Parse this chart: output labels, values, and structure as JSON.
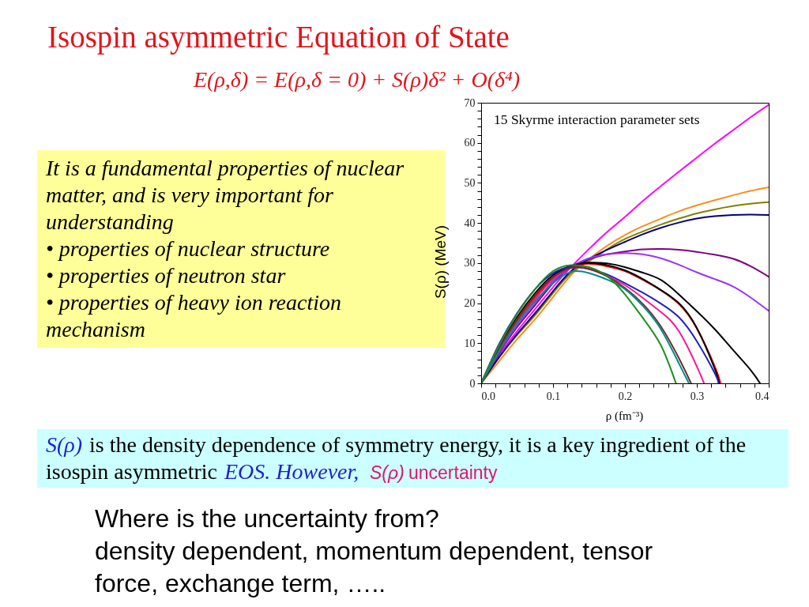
{
  "chart_data": {
    "type": "line",
    "title": "Isospin asymmetric Equation of State",
    "subtitle": "E(ρ,δ) = E(ρ,δ = 0) + S(ρ)δ² + O(δ⁴)",
    "xlabel": "ρ (fm⁻³)",
    "ylabel": "S(ρ) (MeV)",
    "annotations": [
      "15 Skyrme interaction parameter sets",
      "It is a fundamental properties of nuclear\nmatter, and is very important for\nunderstanding\n• properties of nuclear structure\n• properties of neutron star\n• properties of heavy ion reaction\nmechanism",
      "S(ρ)",
      "is the density dependence of symmetry energy, it is a key ingredient of the",
      "isospin asymmetric",
      "EOS. However,",
      "S(ρ)",
      "uncertainty",
      "Where is the uncertainty from?\ndensity dependent, momentum dependent, tensor\nforce, exchange term, ….."
    ],
    "xlim": [
      0,
      0.4
    ],
    "ylim": [
      0,
      70
    ],
    "xticks": [
      {
        "value": 0,
        "label": "0.0"
      },
      {
        "value": 0.02,
        "label": null
      },
      {
        "value": 0.04,
        "label": null
      },
      {
        "value": 0.06,
        "label": null
      },
      {
        "value": 0.08,
        "label": null
      },
      0.1,
      {
        "value": 0.12,
        "label": null
      },
      {
        "value": 0.14,
        "label": null
      },
      {
        "value": 0.16,
        "label": null
      },
      {
        "value": 0.18,
        "label": null
      },
      0.2,
      {
        "value": 0.22,
        "label": null
      },
      {
        "value": 0.24,
        "label": null
      },
      {
        "value": 0.26,
        "label": null
      },
      {
        "value": 0.28,
        "label": null
      },
      0.3,
      {
        "value": 0.32,
        "label": null
      },
      {
        "value": 0.34,
        "label": null
      },
      {
        "value": 0.36,
        "label": null
      },
      {
        "value": 0.38,
        "label": null
      },
      0.4
    ],
    "yticks": [
      0,
      {
        "value": 2,
        "label": null
      },
      {
        "value": 4,
        "label": null
      },
      {
        "value": 6,
        "label": null
      },
      {
        "value": 8,
        "label": null
      },
      10,
      {
        "value": 12,
        "label": null
      },
      {
        "value": 14,
        "label": null
      },
      {
        "value": 16,
        "label": null
      },
      {
        "value": 18,
        "label": null
      },
      20,
      {
        "value": 22,
        "label": null
      },
      {
        "value": 24,
        "label": null
      },
      {
        "value": 26,
        "label": null
      },
      {
        "value": 28,
        "label": null
      },
      30,
      {
        "value": 32,
        "label": null
      },
      {
        "value": 34,
        "label": null
      },
      {
        "value": 36,
        "label": null
      },
      {
        "value": 38,
        "label": null
      },
      40,
      {
        "value": 42,
        "label": null
      },
      {
        "value": 44,
        "label": null
      },
      {
        "value": 46,
        "label": null
      },
      {
        "value": 48,
        "label": null
      },
      50,
      {
        "value": 52,
        "label": null
      },
      {
        "value": 54,
        "label": null
      },
      {
        "value": 56,
        "label": null
      },
      {
        "value": 58,
        "label": null
      },
      60,
      {
        "value": 62,
        "label": null
      },
      {
        "value": 64,
        "label": null
      },
      {
        "value": 66,
        "label": null
      },
      {
        "value": 68,
        "label": null
      },
      70
    ],
    "grid": false,
    "legend": false,
    "marker": "none",
    "line_style": "solid",
    "series": [
      {
        "color": "#ff00ff",
        "x": [
          0,
          0.025,
          0.05,
          0.075,
          0.1,
          0.125,
          0.15,
          0.175,
          0.2,
          0.225,
          0.25,
          0.275,
          0.3,
          0.325,
          0.35,
          0.375,
          0.4
        ],
        "values": [
          0,
          7,
          13,
          18.5,
          24,
          29,
          33.5,
          37.7,
          41.5,
          45.5,
          49.2,
          52.8,
          56.3,
          59.8,
          63.1,
          66.4,
          69.5
        ]
      },
      {
        "color": "#ff8c1a",
        "x": [
          0,
          0.025,
          0.05,
          0.075,
          0.1,
          0.125,
          0.15,
          0.175,
          0.2,
          0.225,
          0.25,
          0.275,
          0.3,
          0.325,
          0.35,
          0.375,
          0.4
        ],
        "values": [
          0,
          5.5,
          11,
          16,
          21.5,
          27,
          31,
          34.3,
          37,
          39.2,
          41.1,
          42.9,
          44.4,
          45.7,
          46.9,
          48,
          48.9
        ]
      },
      {
        "color": "#808000",
        "x": [
          0,
          0.025,
          0.05,
          0.075,
          0.1,
          0.125,
          0.15,
          0.175,
          0.2,
          0.225,
          0.25,
          0.275,
          0.3,
          0.325,
          0.35,
          0.375,
          0.4
        ],
        "values": [
          0,
          6.5,
          12,
          17,
          22.5,
          27.5,
          30.5,
          33.4,
          36,
          37.9,
          39.6,
          41.1,
          42.4,
          43.4,
          44.2,
          44.8,
          45.2
        ]
      },
      {
        "color": "#00007f",
        "x": [
          0,
          0.025,
          0.05,
          0.075,
          0.1,
          0.125,
          0.15,
          0.175,
          0.2,
          0.225,
          0.25,
          0.275,
          0.3,
          0.325,
          0.35,
          0.375,
          0.4
        ],
        "values": [
          0,
          6.5,
          12.3,
          17.5,
          23,
          28,
          31,
          33.3,
          35.3,
          37.2,
          38.8,
          40.1,
          41.1,
          41.7,
          42,
          42.1,
          42
        ]
      },
      {
        "color": "#800080",
        "x": [
          0,
          0.025,
          0.05,
          0.075,
          0.1,
          0.125,
          0.15,
          0.175,
          0.2,
          0.225,
          0.25,
          0.275,
          0.3,
          0.325,
          0.35,
          0.375,
          0.4
        ],
        "values": [
          0,
          7.5,
          14,
          19.5,
          25,
          29,
          31,
          32.2,
          32.9,
          33.4,
          33.5,
          33.3,
          32.8,
          32.1,
          31.1,
          29.2,
          26.6
        ]
      },
      {
        "color": "#9933ff",
        "x": [
          0,
          0.025,
          0.05,
          0.075,
          0.1,
          0.125,
          0.15,
          0.175,
          0.2,
          0.225,
          0.25,
          0.275,
          0.3,
          0.325,
          0.35,
          0.375,
          0.4
        ],
        "values": [
          0,
          7.8,
          14.5,
          20,
          25.5,
          29,
          31.2,
          32.2,
          32.5,
          32.2,
          31.2,
          29.6,
          27.7,
          26,
          24.2,
          21.4,
          18.1
        ]
      },
      {
        "color": "#000000",
        "x": [
          0,
          0.025,
          0.05,
          0.075,
          0.1,
          0.125,
          0.15,
          0.175,
          0.2,
          0.225,
          0.25,
          0.275,
          0.3,
          0.325,
          0.35,
          0.375,
          0.388
        ],
        "values": [
          0,
          8.5,
          16,
          22,
          26.5,
          29.2,
          30.1,
          29.9,
          29,
          27.6,
          25.8,
          22.2,
          18,
          13.5,
          8.4,
          3.3,
          0
        ]
      },
      {
        "color": "#ff0000",
        "x": [
          0,
          0.025,
          0.05,
          0.075,
          0.1,
          0.125,
          0.15,
          0.175,
          0.2,
          0.225,
          0.25,
          0.275,
          0.3,
          0.325,
          0.333
        ],
        "values": [
          0,
          8.3,
          15.5,
          21.5,
          26.3,
          29,
          29.8,
          29.2,
          28,
          25.8,
          23.2,
          19.8,
          13.7,
          4.2,
          0
        ]
      },
      {
        "color": "#000000",
        "x": [
          0,
          0.025,
          0.05,
          0.075,
          0.1,
          0.125,
          0.15,
          0.175,
          0.2,
          0.225,
          0.25,
          0.275,
          0.3,
          0.325,
          0.331
        ],
        "values": [
          0,
          9,
          16.5,
          22.5,
          27,
          29.3,
          30,
          29.5,
          28.2,
          26,
          23.3,
          20,
          13.8,
          3.6,
          0
        ]
      },
      {
        "color": "#2020c0",
        "x": [
          0,
          0.025,
          0.05,
          0.075,
          0.1,
          0.125,
          0.15,
          0.175,
          0.2,
          0.225,
          0.25,
          0.275,
          0.3,
          0.325,
          0.33
        ],
        "values": [
          0,
          9.8,
          17.5,
          23.5,
          27.5,
          29,
          28.5,
          27.2,
          25,
          22.6,
          19.9,
          16.5,
          10.5,
          2.5,
          0
        ]
      },
      {
        "color": "#ff1493",
        "x": [
          0,
          0.025,
          0.05,
          0.075,
          0.1,
          0.125,
          0.15,
          0.175,
          0.2,
          0.225,
          0.25,
          0.275,
          0.3,
          0.31
        ],
        "values": [
          0,
          8,
          15,
          21,
          26,
          28.8,
          28.5,
          26.8,
          24.5,
          21.3,
          17.8,
          13,
          4.2,
          0
        ]
      },
      {
        "color": "#6b2f2f",
        "x": [
          0,
          0.025,
          0.05,
          0.075,
          0.1,
          0.125,
          0.15,
          0.175,
          0.2,
          0.225,
          0.25,
          0.275,
          0.292
        ],
        "values": [
          0,
          8.8,
          16,
          22,
          26.5,
          28.8,
          28.6,
          26.7,
          23.8,
          19.8,
          14.2,
          6.3,
          0
        ]
      },
      {
        "color": "#008b8b",
        "x": [
          0,
          0.025,
          0.05,
          0.075,
          0.1,
          0.125,
          0.15,
          0.175,
          0.2,
          0.225,
          0.25,
          0.275,
          0.289
        ],
        "values": [
          0,
          8,
          15,
          20.5,
          25,
          27.8,
          27.5,
          25.9,
          23.5,
          19.3,
          13.5,
          5,
          0
        ]
      },
      {
        "color": "#1e8f1e",
        "x": [
          0,
          0.025,
          0.05,
          0.075,
          0.1,
          0.125,
          0.15,
          0.175,
          0.2,
          0.225,
          0.25,
          0.271
        ],
        "values": [
          0,
          9.5,
          17.3,
          23.5,
          28,
          29.5,
          29,
          26.8,
          22.2,
          16.3,
          9.5,
          0
        ]
      }
    ]
  }
}
